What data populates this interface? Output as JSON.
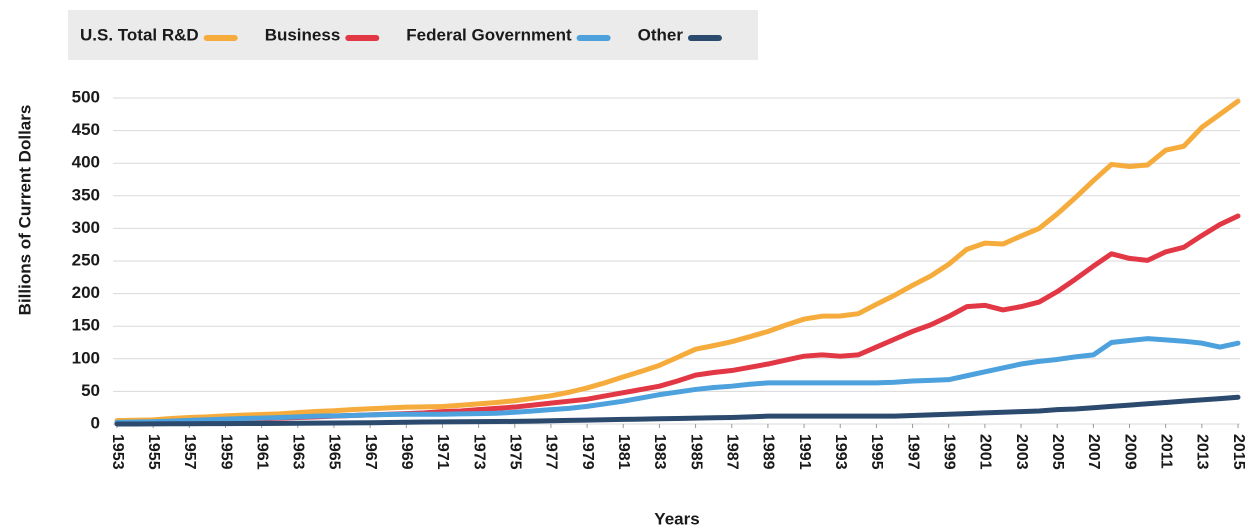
{
  "chart_data": {
    "type": "line",
    "x_label": "Years",
    "y_label": "Billions of Current Dollars",
    "x": [
      1953,
      1954,
      1955,
      1956,
      1957,
      1958,
      1959,
      1960,
      1961,
      1962,
      1963,
      1964,
      1965,
      1966,
      1967,
      1968,
      1969,
      1970,
      1971,
      1972,
      1973,
      1974,
      1975,
      1976,
      1977,
      1978,
      1979,
      1980,
      1981,
      1982,
      1983,
      1984,
      1985,
      1986,
      1987,
      1988,
      1989,
      1990,
      1991,
      1992,
      1993,
      1994,
      1995,
      1996,
      1997,
      1998,
      1999,
      2000,
      2001,
      2002,
      2003,
      2004,
      2005,
      2006,
      2007,
      2008,
      2009,
      2010,
      2011,
      2012,
      2013,
      2014,
      2015
    ],
    "xlim": [
      1953,
      2015
    ],
    "xticks": [
      1953,
      1955,
      1957,
      1959,
      1961,
      1963,
      1965,
      1967,
      1969,
      1971,
      1973,
      1975,
      1977,
      1979,
      1981,
      1983,
      1985,
      1987,
      1989,
      1991,
      1993,
      1995,
      1997,
      1999,
      2001,
      2003,
      2005,
      2007,
      2009,
      2011,
      2013,
      2015
    ],
    "ylim": [
      0,
      500
    ],
    "yticks": [
      0,
      50,
      100,
      150,
      200,
      250,
      300,
      350,
      400,
      450,
      500
    ],
    "grid": true,
    "legend": "top-left",
    "series": [
      {
        "name": "U.S. Total R&D",
        "color": "#f5ac3c",
        "values": [
          5.2,
          5.7,
          6.3,
          8.5,
          9.9,
          10.9,
          12.5,
          13.7,
          14.6,
          15.6,
          17.4,
          19.2,
          20.3,
          22.1,
          23.3,
          24.7,
          25.9,
          26.3,
          26.9,
          28.7,
          30.9,
          33.0,
          35.7,
          39.4,
          43.2,
          48.7,
          55.3,
          63.3,
          72.3,
          80.8,
          90.0,
          102.2,
          114.7,
          120.2,
          126.3,
          133.9,
          141.9,
          151.9,
          160.9,
          165.4,
          165.7,
          169.2,
          183.6,
          197.3,
          212.7,
          226.9,
          245.0,
          267.9,
          277.4,
          276.0,
          288.3,
          299.9,
          322.1,
          347.0,
          373.2,
          398.1,
          395.0,
          397.3,
          420.0,
          426.0,
          455.0,
          475.0,
          495.1
        ]
      },
      {
        "name": "Business",
        "color": "#e23744",
        "values": [
          1,
          1.5,
          2,
          3,
          4,
          5,
          6,
          7,
          8,
          9,
          10,
          11,
          12,
          13,
          14,
          15,
          16,
          17,
          19,
          20,
          22,
          24,
          26,
          29,
          32,
          35,
          38,
          43,
          48,
          53,
          58,
          66,
          75,
          79,
          82,
          87,
          92,
          98,
          104,
          106,
          104,
          106,
          118,
          130,
          142,
          152,
          165,
          180,
          182,
          175,
          180,
          187,
          203,
          222,
          242,
          261,
          254,
          251,
          264,
          271,
          289,
          306,
          319
        ]
      },
      {
        "name": "Federal Government",
        "color": "#4da1dd",
        "values": [
          2.5,
          3,
          3.5,
          4.5,
          5.5,
          6.5,
          7.5,
          8.5,
          9,
          10,
          11,
          12,
          12.5,
          13,
          14,
          14.5,
          15,
          15,
          15,
          15.5,
          16,
          16.5,
          18,
          20,
          22,
          24,
          27,
          31,
          35,
          40,
          45,
          49,
          53,
          56,
          58,
          61,
          63,
          63,
          63,
          63,
          63,
          63,
          63,
          64,
          66,
          67,
          68,
          74,
          80,
          86,
          92,
          96,
          99,
          103,
          106,
          125,
          128,
          131,
          129,
          127,
          124,
          118,
          124
        ]
      },
      {
        "name": "Other",
        "color": "#2b4a6e",
        "values": [
          0,
          0,
          0.2,
          0.3,
          0.4,
          0.5,
          0.6,
          0.7,
          0.8,
          1,
          1.2,
          1.4,
          1.6,
          1.8,
          2,
          2.3,
          2.6,
          3,
          3.2,
          3.4,
          3.6,
          3.8,
          4,
          4.5,
          5,
          5.5,
          6,
          6.5,
          7,
          7.5,
          8,
          8.5,
          9,
          9.5,
          10,
          11,
          12,
          12,
          12,
          12,
          12,
          12,
          12,
          12,
          13,
          14,
          15,
          16,
          17,
          18,
          19,
          20,
          22,
          23,
          25,
          27,
          29,
          31,
          33,
          35,
          37,
          39,
          41
        ]
      }
    ]
  }
}
